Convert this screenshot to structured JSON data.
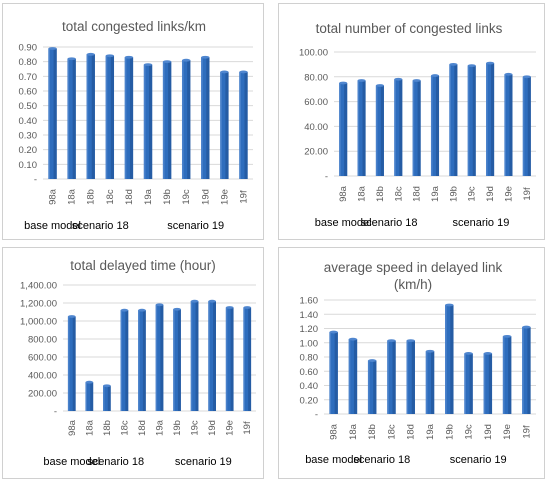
{
  "chart_data": [
    {
      "type": "bar",
      "title": "total congested links/km",
      "title_line2": "",
      "categories": [
        "98a",
        "18a",
        "18b",
        "18c",
        "18d",
        "19a",
        "19b",
        "19c",
        "19d",
        "19e",
        "19f"
      ],
      "values": [
        0.89,
        0.82,
        0.85,
        0.84,
        0.83,
        0.78,
        0.8,
        0.81,
        0.83,
        0.73,
        0.73
      ],
      "ylim": [
        0,
        0.9
      ],
      "yticks": [
        "-",
        "0.10",
        "0.20",
        "0.30",
        "0.40",
        "0.50",
        "0.60",
        "0.70",
        "0.80",
        "0.90"
      ],
      "groups": [
        {
          "label": "base model",
          "anchor": 0
        },
        {
          "label": "scenario 18",
          "anchor": 2.5
        },
        {
          "label": "scenario 19",
          "anchor": 7.5
        }
      ],
      "bar_color": "#2e6dbd"
    },
    {
      "type": "bar",
      "title": "total number of congested links",
      "title_line2": "",
      "categories": [
        "98a",
        "18a",
        "18b",
        "18c",
        "18d",
        "19a",
        "19b",
        "19c",
        "19d",
        "19e",
        "19f"
      ],
      "values": [
        75,
        77,
        73,
        78,
        77,
        81,
        90,
        89,
        91,
        82,
        80
      ],
      "ylim": [
        0,
        100
      ],
      "yticks": [
        "-",
        "20.00",
        "40.00",
        "60.00",
        "80.00",
        "100.00"
      ],
      "groups": [
        {
          "label": "base model",
          "anchor": 0
        },
        {
          "label": "scenario 18",
          "anchor": 2.5
        },
        {
          "label": "scenario 19",
          "anchor": 7.5
        }
      ],
      "bar_color": "#2e6dbd"
    },
    {
      "type": "bar",
      "title": "total delayed time (hour)",
      "title_line2": "",
      "categories": [
        "98a",
        "18a",
        "18b",
        "18c",
        "18d",
        "19a",
        "19b",
        "19c",
        "19d",
        "19e",
        "19f"
      ],
      "values": [
        1050,
        320,
        280,
        1120,
        1120,
        1180,
        1130,
        1220,
        1220,
        1150,
        1150
      ],
      "ylim": [
        0,
        1400
      ],
      "yticks": [
        "-",
        "200.00",
        "400.00",
        "600.00",
        "800.00",
        "1,000.00",
        "1,200.00",
        "1,400.00"
      ],
      "groups": [
        {
          "label": "base model",
          "anchor": 0
        },
        {
          "label": "scenario 18",
          "anchor": 2.5
        },
        {
          "label": "scenario 19",
          "anchor": 7.5
        }
      ],
      "bar_color": "#2e6dbd"
    },
    {
      "type": "bar",
      "title": "average speed in delayed link",
      "title_line2": "(km/h)",
      "categories": [
        "98a",
        "18a",
        "18b",
        "18c",
        "18d",
        "19a",
        "19b",
        "19c",
        "19d",
        "19e",
        "19f"
      ],
      "values": [
        1.15,
        1.05,
        0.75,
        1.03,
        1.03,
        0.88,
        1.53,
        0.85,
        0.85,
        1.09,
        1.22
      ],
      "ylim": [
        0,
        1.6
      ],
      "yticks": [
        "-",
        "0.20",
        "0.40",
        "0.60",
        "0.80",
        "1.00",
        "1.20",
        "1.40",
        "1.60"
      ],
      "groups": [
        {
          "label": "base model",
          "anchor": 0
        },
        {
          "label": "scenario 18",
          "anchor": 2.5
        },
        {
          "label": "scenario 19",
          "anchor": 7.5
        }
      ],
      "bar_color": "#2e6dbd"
    }
  ]
}
